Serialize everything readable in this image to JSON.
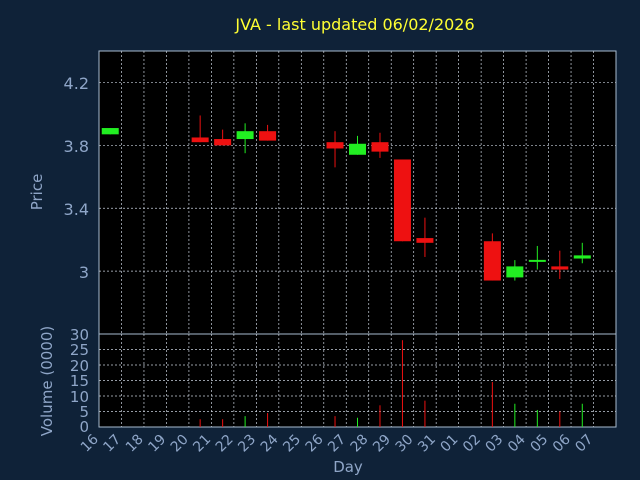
{
  "chart_data": [
    {
      "type": "candlestick",
      "title": "JVA - last updated 06/02/2026",
      "ylabel": "Price",
      "ylim": [
        2.6,
        4.4
      ],
      "yticks": [
        "4.2",
        "3.8",
        "3.4",
        "3"
      ],
      "grid": true,
      "colors": {
        "up": "#22ee22",
        "down": "#ee1111"
      },
      "x": [
        "16",
        "17",
        "18",
        "19",
        "20",
        "21",
        "22",
        "23",
        "24",
        "25",
        "26",
        "27",
        "28",
        "29",
        "30",
        "31",
        "01",
        "02",
        "03",
        "04",
        "05",
        "06",
        "07"
      ],
      "candles": [
        {
          "day": "16",
          "open": 3.87,
          "close": 3.91,
          "high": 3.91,
          "low": 3.87
        },
        {
          "day": "20",
          "open": 3.85,
          "close": 3.82,
          "high": 3.99,
          "low": 3.82
        },
        {
          "day": "21",
          "open": 3.84,
          "close": 3.8,
          "high": 3.9,
          "low": 3.8
        },
        {
          "day": "22",
          "open": 3.84,
          "close": 3.89,
          "high": 3.94,
          "low": 3.75
        },
        {
          "day": "23",
          "open": 3.89,
          "close": 3.83,
          "high": 3.93,
          "low": 3.83
        },
        {
          "day": "26",
          "open": 3.82,
          "close": 3.78,
          "high": 3.89,
          "low": 3.66
        },
        {
          "day": "27",
          "open": 3.74,
          "close": 3.81,
          "high": 3.86,
          "low": 3.74
        },
        {
          "day": "28",
          "open": 3.82,
          "close": 3.76,
          "high": 3.88,
          "low": 3.72
        },
        {
          "day": "29",
          "open": 3.71,
          "close": 3.19,
          "high": 3.71,
          "low": 3.19
        },
        {
          "day": "30",
          "open": 3.21,
          "close": 3.18,
          "high": 3.34,
          "low": 3.09
        },
        {
          "day": "02",
          "open": 3.19,
          "close": 2.94,
          "high": 3.24,
          "low": 2.94
        },
        {
          "day": "03",
          "open": 2.96,
          "close": 3.03,
          "high": 3.07,
          "low": 2.94
        },
        {
          "day": "04",
          "open": 3.06,
          "close": 3.07,
          "high": 3.16,
          "low": 3.01
        },
        {
          "day": "05",
          "open": 3.03,
          "close": 3.01,
          "high": 3.13,
          "low": 2.95
        },
        {
          "day": "06",
          "open": 3.08,
          "close": 3.1,
          "high": 3.18,
          "low": 3.05
        }
      ]
    },
    {
      "type": "bar",
      "ylabel": "Volume (0000)",
      "xlabel": "Day",
      "ylim": [
        0,
        30
      ],
      "yticks": [
        "30",
        "25",
        "20",
        "15",
        "10",
        "5",
        "0"
      ],
      "grid": true,
      "bars": [
        {
          "day": "20",
          "value": 2.5,
          "direction": "down"
        },
        {
          "day": "21",
          "value": 2.5,
          "direction": "down"
        },
        {
          "day": "22",
          "value": 3.5,
          "direction": "up"
        },
        {
          "day": "23",
          "value": 4.5,
          "direction": "down"
        },
        {
          "day": "26",
          "value": 3.5,
          "direction": "down"
        },
        {
          "day": "27",
          "value": 3.0,
          "direction": "up"
        },
        {
          "day": "28",
          "value": 7.0,
          "direction": "down"
        },
        {
          "day": "29",
          "value": 28.0,
          "direction": "down"
        },
        {
          "day": "30",
          "value": 8.5,
          "direction": "down"
        },
        {
          "day": "02",
          "value": 14.5,
          "direction": "down"
        },
        {
          "day": "03",
          "value": 7.5,
          "direction": "up"
        },
        {
          "day": "04",
          "value": 5.5,
          "direction": "up"
        },
        {
          "day": "05",
          "value": 5.0,
          "direction": "down"
        },
        {
          "day": "06",
          "value": 7.5,
          "direction": "up"
        }
      ]
    }
  ]
}
